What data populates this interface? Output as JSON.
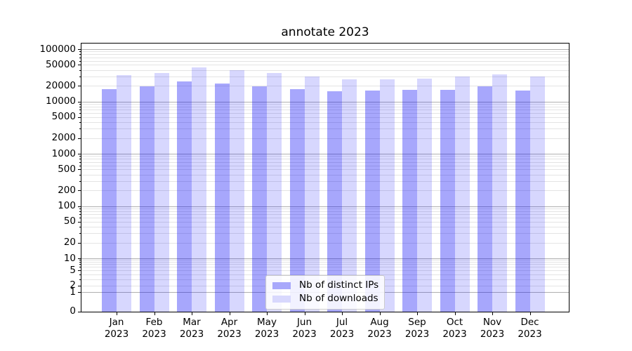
{
  "title": "annotate 2023",
  "chart_data": {
    "type": "bar",
    "title": "annotate 2023",
    "categories": [
      {
        "month": "Jan",
        "year": "2023"
      },
      {
        "month": "Feb",
        "year": "2023"
      },
      {
        "month": "Mar",
        "year": "2023"
      },
      {
        "month": "Apr",
        "year": "2023"
      },
      {
        "month": "May",
        "year": "2023"
      },
      {
        "month": "Jun",
        "year": "2023"
      },
      {
        "month": "Jul",
        "year": "2023"
      },
      {
        "month": "Aug",
        "year": "2023"
      },
      {
        "month": "Sep",
        "year": "2023"
      },
      {
        "month": "Oct",
        "year": "2023"
      },
      {
        "month": "Nov",
        "year": "2023"
      },
      {
        "month": "Dec",
        "year": "2023"
      }
    ],
    "series": [
      {
        "name": "Nb of distinct IPs",
        "fill_rgba": "rgba(0,0,246,0.345)",
        "swatch_hex": "#a8a8fb",
        "values": [
          17000,
          19400,
          24000,
          21800,
          19400,
          17100,
          15800,
          16000,
          16700,
          16900,
          19200,
          16100
        ]
      },
      {
        "name": "Nb of downloads",
        "fill_rgba": "rgba(0,0,246,0.155)",
        "swatch_hex": "#d8d8fd",
        "values": [
          32000,
          34500,
          45000,
          39500,
          35000,
          30000,
          26500,
          26700,
          27000,
          29700,
          32500,
          29500
        ]
      }
    ],
    "y_axis": {
      "scale": "symlog",
      "tick_values": [
        0,
        1,
        2,
        5,
        10,
        20,
        50,
        100,
        200,
        500,
        1000,
        2000,
        5000,
        10000,
        20000,
        50000,
        100000
      ],
      "ylim": [
        0,
        130000
      ]
    },
    "grid": true,
    "legend": {
      "position": "lower center"
    }
  },
  "colors": {
    "major_grid": "#b0b0b0",
    "minor_grid": "#e4e4e4",
    "axis": "#000000",
    "background": "#ffffff"
  }
}
